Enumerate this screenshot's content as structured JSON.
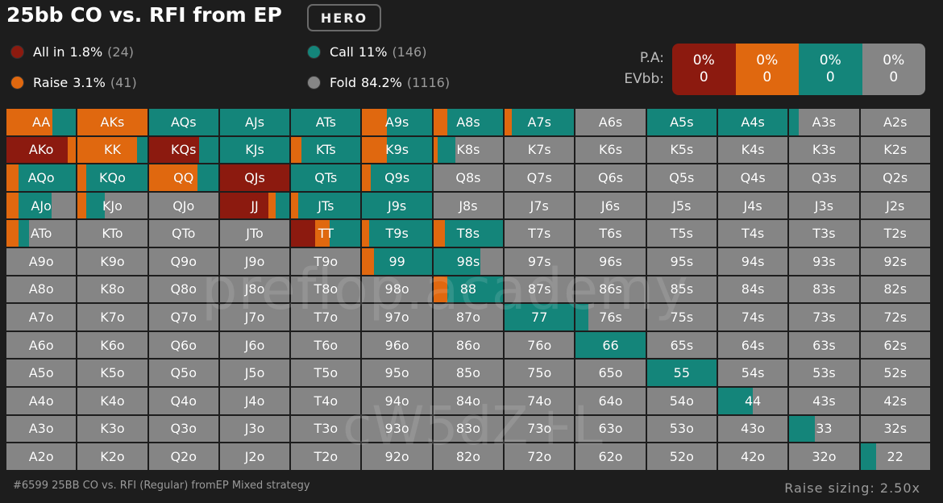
{
  "header": {
    "title": "25bb CO vs. RFI from EP",
    "badge": "HERO"
  },
  "colors": {
    "allin": "#8c1a0f",
    "raise": "#e0680f",
    "call": "#14857a",
    "fold": "#858585"
  },
  "legend": [
    {
      "key": "allin",
      "label": "All in",
      "pct": "1.8%",
      "count": "(24)"
    },
    {
      "key": "raise",
      "label": "Raise",
      "pct": "3.1%",
      "count": "(41)"
    },
    {
      "key": "call",
      "label": "Call",
      "pct": "11%",
      "count": "(146)"
    },
    {
      "key": "fold",
      "label": "Fold",
      "pct": "84.2%",
      "count": "(1116)"
    }
  ],
  "summary": {
    "pa_label": "P.A:",
    "ev_label": "EVbb:",
    "cells": [
      {
        "key": "allin",
        "pa": "0%",
        "ev": "0"
      },
      {
        "key": "raise",
        "pa": "0%",
        "ev": "0"
      },
      {
        "key": "call",
        "pa": "0%",
        "ev": "0"
      },
      {
        "key": "fold",
        "pa": "0%",
        "ev": "0"
      }
    ]
  },
  "ranks": [
    "A",
    "K",
    "Q",
    "J",
    "T",
    "9",
    "8",
    "7",
    "6",
    "5",
    "4",
    "3",
    "2"
  ],
  "strategy": {
    "AA": {
      "allin": 0,
      "raise": 0.66,
      "call": 0.34
    },
    "AKs": {
      "allin": 0,
      "raise": 1,
      "call": 0
    },
    "AQs": {
      "allin": 0,
      "raise": 0,
      "call": 1
    },
    "AJs": {
      "allin": 0,
      "raise": 0,
      "call": 1
    },
    "ATs": {
      "allin": 0,
      "raise": 0,
      "call": 1
    },
    "A9s": {
      "allin": 0,
      "raise": 0.35,
      "call": 0.65
    },
    "A8s": {
      "allin": 0,
      "raise": 0.2,
      "call": 0.8
    },
    "A7s": {
      "allin": 0,
      "raise": 0.1,
      "call": 0.9
    },
    "A5s": {
      "allin": 0,
      "raise": 0,
      "call": 1
    },
    "A4s": {
      "allin": 0,
      "raise": 0,
      "call": 1
    },
    "A3s": {
      "allin": 0,
      "raise": 0,
      "call": 0.14
    },
    "AKo": {
      "allin": 0.88,
      "raise": 0.12,
      "call": 0
    },
    "KK": {
      "allin": 0,
      "raise": 0.85,
      "call": 0.15
    },
    "KQs": {
      "allin": 0.72,
      "raise": 0,
      "call": 0.28
    },
    "KJs": {
      "allin": 0,
      "raise": 0,
      "call": 1
    },
    "KTs": {
      "allin": 0,
      "raise": 0.15,
      "call": 0.85
    },
    "K9s": {
      "allin": 0,
      "raise": 0.35,
      "call": 0.65
    },
    "K8s": {
      "allin": 0,
      "raise": 0.06,
      "call": 0.26
    },
    "AQo": {
      "allin": 0,
      "raise": 0.17,
      "call": 0.83
    },
    "KQo": {
      "allin": 0,
      "raise": 0.12,
      "call": 0.88
    },
    "QQ": {
      "allin": 0,
      "raise": 0.7,
      "call": 0.3
    },
    "QJs": {
      "allin": 1,
      "raise": 0,
      "call": 0
    },
    "QTs": {
      "allin": 0,
      "raise": 0,
      "call": 1
    },
    "Q9s": {
      "allin": 0,
      "raise": 0.12,
      "call": 0.88
    },
    "AJo": {
      "allin": 0,
      "raise": 0.17,
      "call": 0.48
    },
    "KJo": {
      "allin": 0,
      "raise": 0.12,
      "call": 0.27
    },
    "JJ": {
      "allin": 0.7,
      "raise": 0.1,
      "call": 0.2
    },
    "JTs": {
      "allin": 0,
      "raise": 0.1,
      "call": 0.9
    },
    "J9s": {
      "allin": 0,
      "raise": 0,
      "call": 1
    },
    "ATo": {
      "allin": 0,
      "raise": 0.17,
      "call": 0.16
    },
    "TT": {
      "allin": 0.35,
      "raise": 0.2,
      "call": 0.45
    },
    "T9s": {
      "allin": 0,
      "raise": 0.1,
      "call": 0.9
    },
    "T8s": {
      "allin": 0,
      "raise": 0.16,
      "call": 0.84
    },
    "99": {
      "allin": 0,
      "raise": 0.17,
      "call": 0.83
    },
    "98s": {
      "allin": 0,
      "raise": 0,
      "call": 0.68
    },
    "88": {
      "allin": 0,
      "raise": 0.2,
      "call": 0.8
    },
    "77": {
      "allin": 0,
      "raise": 0,
      "call": 1
    },
    "76s": {
      "allin": 0,
      "raise": 0,
      "call": 0.18
    },
    "66": {
      "allin": 0,
      "raise": 0,
      "call": 1
    },
    "55": {
      "allin": 0,
      "raise": 0,
      "call": 1
    },
    "44": {
      "allin": 0,
      "raise": 0,
      "call": 0.5
    },
    "33": {
      "allin": 0,
      "raise": 0,
      "call": 0.37
    },
    "22": {
      "allin": 0,
      "raise": 0,
      "call": 0.22
    }
  },
  "watermark": {
    "brand": "preflop.academy",
    "code": "cW5dZ+L"
  },
  "footer": {
    "left": "#6599 25BB CO vs. RFI (Regular) fromEP Mixed strategy",
    "right": "Raise sizing: 2.50x"
  }
}
